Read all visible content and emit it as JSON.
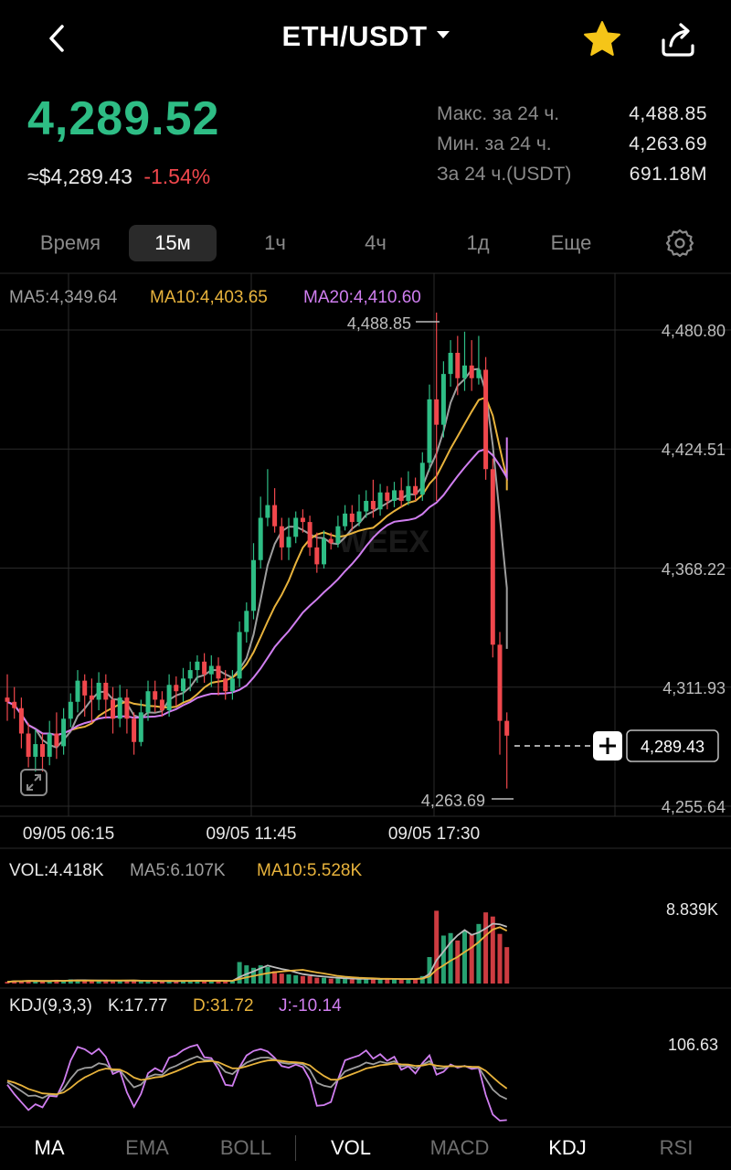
{
  "header": {
    "title": "ETH/USDT",
    "icons": {
      "back": "chevron-left-icon",
      "dropdown": "caret-down-icon",
      "favorite": "star-icon",
      "share": "share-icon"
    },
    "favorite_color": "#f5c518"
  },
  "ticker": {
    "last_price": "4,289.52",
    "usd_price": "≈$4,289.43",
    "change_pct": "-1.54%",
    "stats": [
      {
        "label": "Макс. за 24 ч.",
        "value": "4,488.85"
      },
      {
        "label": "Мин. за 24 ч.",
        "value": "4,263.69"
      },
      {
        "label": "За 24 ч.(USDT)",
        "value": "691.18M"
      }
    ]
  },
  "timeframes": {
    "items": [
      "Время",
      "15м",
      "1ч",
      "4ч",
      "1д",
      "Еще"
    ],
    "active": "15м",
    "settings_icon": "gear-icon"
  },
  "chart_data": {
    "type": "candlestick",
    "legend": {
      "ma5": "MA5:4,349.64",
      "ma10": "MA10:4,403.65",
      "ma20": "MA20:4,410.60"
    },
    "y_ticks": [
      "4,480.80",
      "4,424.51",
      "4,368.22",
      "4,311.93",
      "4,255.64"
    ],
    "y_tick_values": [
      4480.8,
      4424.51,
      4368.22,
      4311.93,
      4255.64
    ],
    "x_ticks": [
      "09/05 06:15",
      "09/05 11:45",
      "09/05 17:30"
    ],
    "high_label": "4,488.85",
    "low_label": "4,263.69",
    "current_price_label": "4,289.43",
    "watermark": "WEEX",
    "candles": [
      [
        4307,
        4305,
        4318,
        4296
      ],
      [
        4305,
        4302,
        4312,
        4297
      ],
      [
        4302,
        4290,
        4307,
        4283
      ],
      [
        4290,
        4279,
        4295,
        4274
      ],
      [
        4279,
        4285,
        4292,
        4272
      ],
      [
        4285,
        4279,
        4290,
        4272
      ],
      [
        4279,
        4290,
        4296,
        4275
      ],
      [
        4290,
        4284,
        4300,
        4278
      ],
      [
        4284,
        4297,
        4302,
        4280
      ],
      [
        4297,
        4305,
        4309,
        4293
      ],
      [
        4305,
        4315,
        4320,
        4300
      ],
      [
        4315,
        4308,
        4318,
        4298
      ],
      [
        4308,
        4306,
        4316,
        4295
      ],
      [
        4306,
        4314,
        4319,
        4301
      ],
      [
        4314,
        4306,
        4318,
        4297
      ],
      [
        4306,
        4297,
        4312,
        4290
      ],
      [
        4297,
        4307,
        4313,
        4293
      ],
      [
        4307,
        4297,
        4311,
        4290
      ],
      [
        4297,
        4286,
        4300,
        4280
      ],
      [
        4286,
        4300,
        4306,
        4284
      ],
      [
        4300,
        4310,
        4315,
        4296
      ],
      [
        4310,
        4306,
        4315,
        4300
      ],
      [
        4306,
        4301,
        4310,
        4298
      ],
      [
        4301,
        4313,
        4318,
        4298
      ],
      [
        4313,
        4310,
        4317,
        4303
      ],
      [
        4310,
        4316,
        4321,
        4305
      ],
      [
        4316,
        4320,
        4324,
        4310
      ],
      [
        4320,
        4324,
        4327,
        4314
      ],
      [
        4324,
        4318,
        4328,
        4314
      ],
      [
        4318,
        4322,
        4327,
        4312
      ],
      [
        4322,
        4316,
        4326,
        4308
      ],
      [
        4316,
        4310,
        4320,
        4306
      ],
      [
        4310,
        4316,
        4320,
        4306
      ],
      [
        4316,
        4338,
        4343,
        4312
      ],
      [
        4338,
        4348,
        4352,
        4333
      ],
      [
        4348,
        4372,
        4380,
        4344
      ],
      [
        4372,
        4392,
        4402,
        4368
      ],
      [
        4392,
        4398,
        4415,
        4388
      ],
      [
        4398,
        4388,
        4406,
        4385
      ],
      [
        4388,
        4378,
        4392,
        4372
      ],
      [
        4378,
        4383,
        4392,
        4372
      ],
      [
        4383,
        4392,
        4395,
        4380
      ],
      [
        4392,
        4390,
        4396,
        4385
      ],
      [
        4390,
        4378,
        4393,
        4374
      ],
      [
        4378,
        4370,
        4385,
        4366
      ],
      [
        4370,
        4382,
        4386,
        4368
      ],
      [
        4382,
        4380,
        4385,
        4377
      ],
      [
        4380,
        4388,
        4393,
        4378
      ],
      [
        4388,
        4394,
        4398,
        4386
      ],
      [
        4394,
        4390,
        4398,
        4386
      ],
      [
        4390,
        4395,
        4403,
        4388
      ],
      [
        4395,
        4400,
        4405,
        4392
      ],
      [
        4400,
        4396,
        4410,
        4392
      ],
      [
        4396,
        4404,
        4408,
        4393
      ],
      [
        4404,
        4400,
        4407,
        4396
      ],
      [
        4400,
        4405,
        4409,
        4397
      ],
      [
        4405,
        4400,
        4411,
        4397
      ],
      [
        4400,
        4407,
        4414,
        4398
      ],
      [
        4407,
        4403,
        4411,
        4400
      ],
      [
        4403,
        4418,
        4423,
        4400
      ],
      [
        4418,
        4448,
        4455,
        4414
      ],
      [
        4448,
        4436,
        4489,
        4400
      ],
      [
        4436,
        4460,
        4466,
        4430
      ],
      [
        4460,
        4470,
        4476,
        4454
      ],
      [
        4470,
        4458,
        4478,
        4450
      ],
      [
        4458,
        4464,
        4480,
        4452
      ],
      [
        4464,
        4458,
        4476,
        4452
      ],
      [
        4458,
        4462,
        4478,
        4455
      ],
      [
        4462,
        4415,
        4468,
        4410
      ],
      [
        4415,
        4332,
        4420,
        4326
      ],
      [
        4332,
        4296,
        4338,
        4280
      ],
      [
        4296,
        4289,
        4300,
        4264
      ]
    ],
    "volume": {
      "legend": {
        "vol": "VOL:4.418K",
        "ma5": "MA5:6.107K",
        "ma10": "MA10:5.528K"
      },
      "max_label": "8.839K",
      "max_value": 8.839,
      "values": [
        0.2,
        0.35,
        0.3,
        0.4,
        0.3,
        0.25,
        0.3,
        0.45,
        0.35,
        0.5,
        0.4,
        0.3,
        0.35,
        0.3,
        0.4,
        0.35,
        0.3,
        0.4,
        0.35,
        0.3,
        0.25,
        0.3,
        0.3,
        0.35,
        0.3,
        0.3,
        0.35,
        0.4,
        0.3,
        0.35,
        0.3,
        0.3,
        0.35,
        2.6,
        2.2,
        1.9,
        2.2,
        2.0,
        1.5,
        1.2,
        1.1,
        1.0,
        0.9,
        0.9,
        0.7,
        0.7,
        0.6,
        0.6,
        0.6,
        0.5,
        0.5,
        0.6,
        0.6,
        0.5,
        0.6,
        0.5,
        0.5,
        0.6,
        0.6,
        0.9,
        3.2,
        8.8,
        5.8,
        6.1,
        5.2,
        6.4,
        5.9,
        7.2,
        8.6,
        8.1,
        6.0,
        4.4
      ]
    },
    "kdj": {
      "legend": {
        "params": "KDJ(9,3,3)",
        "k": "K:17.77",
        "d": "D:31.72",
        "j": "J:-10.14"
      },
      "max_label": "106.63",
      "max_value": 106.63
    },
    "colors": {
      "up": "#2ebd85",
      "down": "#f0474c",
      "ma5": "#9e9e9e",
      "ma10": "#e8b33c",
      "ma20": "#d07ef0"
    }
  },
  "bottom_tabs": {
    "items": [
      "MA",
      "EMA",
      "BOLL",
      "VOL",
      "MACD",
      "KDJ",
      "RSI"
    ],
    "active": [
      "MA",
      "VOL",
      "KDJ"
    ]
  }
}
